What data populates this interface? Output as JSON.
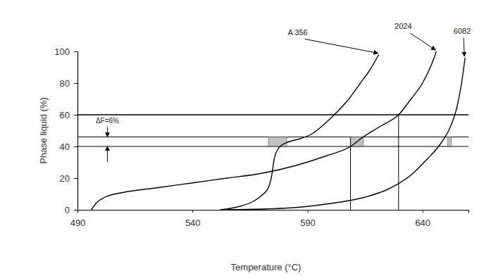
{
  "chart_data": {
    "type": "line",
    "x_label": "Temperature (°C)",
    "y_label": "Phase liquid (%)",
    "xlim": [
      490,
      660
    ],
    "ylim": [
      0,
      100
    ],
    "xticks": [
      490,
      540,
      590,
      640
    ],
    "yticks": [
      0,
      20,
      40,
      60,
      80,
      100
    ],
    "grid": false,
    "legend": false,
    "series": [
      {
        "name": "A 356",
        "color": "#000000",
        "x": [
          552,
          560,
          566,
          570,
          573,
          574.5,
          575.5,
          577,
          579,
          582,
          587,
          592,
          598,
          603,
          608,
          613,
          617,
          621
        ],
        "values": [
          0,
          2,
          5,
          9,
          14,
          22,
          32,
          38,
          41,
          43,
          45,
          48,
          55,
          62,
          70,
          80,
          88,
          98
        ]
      },
      {
        "name": "2024",
        "color": "#000000",
        "x": [
          496,
          498,
          502,
          510,
          525,
          540,
          555,
          570,
          585,
          598,
          608.7,
          614.2,
          622,
          629.6,
          635,
          640,
          644,
          646
        ],
        "values": [
          0,
          4,
          8,
          11,
          14,
          17,
          20,
          23,
          28,
          34,
          40,
          46,
          53,
          60,
          70,
          80,
          92,
          100
        ]
      },
      {
        "name": "6082",
        "color": "#000000",
        "x": [
          555,
          580,
          600,
          615,
          625,
          635,
          642,
          648,
          652,
          655,
          657,
          658.5
        ],
        "values": [
          0,
          1,
          4,
          8,
          13,
          22,
          32,
          42,
          52,
          65,
          80,
          96
        ]
      }
    ],
    "reference_lines": [
      60,
      46,
      40
    ],
    "vertical_lines": [
      {
        "x": 608.7,
        "y": [
          0,
          46
        ]
      },
      {
        "x": 629.6,
        "y": [
          0,
          60
        ]
      }
    ],
    "shaded_regions": [
      {
        "x": [
          573,
          581
        ],
        "y": [
          40,
          46
        ]
      },
      {
        "x": [
          608.7,
          614.2
        ],
        "y": [
          40,
          46
        ]
      },
      {
        "x": [
          651,
          652.5
        ],
        "y": [
          40,
          46
        ]
      }
    ],
    "annotations": [
      {
        "text": "ΔF=6%",
        "x": 503,
        "y": [
          46,
          40
        ]
      }
    ]
  }
}
